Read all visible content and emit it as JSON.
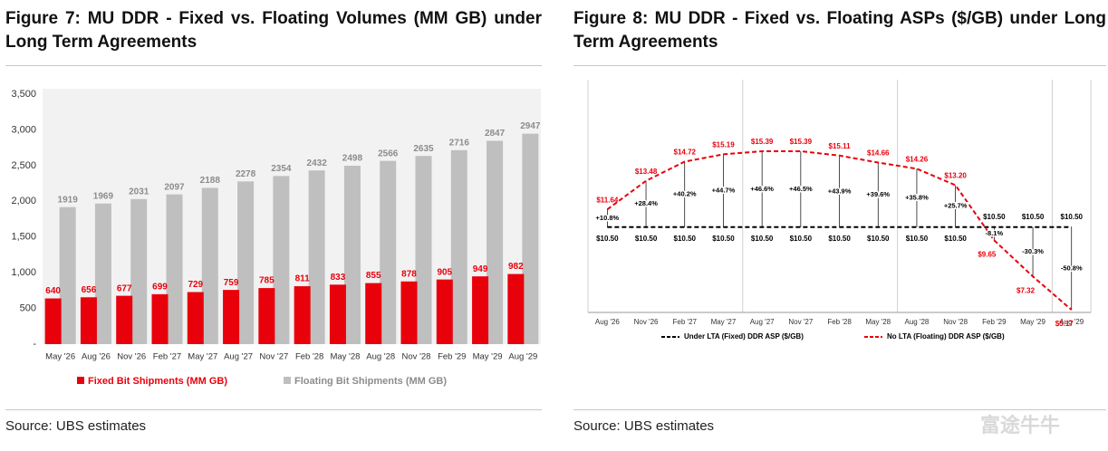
{
  "chart_data": [
    {
      "type": "bar",
      "title": "Figure 7: MU DDR - Fixed vs. Floating Volumes (MM GB) under Long Term Agreements",
      "categories": [
        "May '26",
        "Aug '26",
        "Nov '26",
        "Feb '27",
        "May '27",
        "Aug '27",
        "Nov '27",
        "Feb '28",
        "May '28",
        "Aug '28",
        "Nov '28",
        "Feb '29",
        "May '29",
        "Aug '29"
      ],
      "series": [
        {
          "name": "Fixed Bit Shipments (MM GB)",
          "color": "#e8000b",
          "values": [
            640,
            656,
            677,
            699,
            729,
            759,
            785,
            811,
            833,
            855,
            878,
            905,
            949,
            982
          ]
        },
        {
          "name": "Floating Bit Shipments (MM GB)",
          "color": "#bfbfbf",
          "values": [
            1919,
            1969,
            2031,
            2097,
            2188,
            2278,
            2354,
            2432,
            2498,
            2566,
            2635,
            2716,
            2847,
            2947
          ]
        }
      ],
      "ylim": [
        0,
        3500
      ],
      "yticks": [
        {
          "value": 0,
          "label": "-"
        },
        500,
        {
          "value": 1000,
          "label": "1,000"
        },
        {
          "value": 1500,
          "label": "1,500"
        },
        {
          "value": 2000,
          "label": "2,000"
        },
        {
          "value": 2500,
          "label": "2,500"
        },
        {
          "value": 3000,
          "label": "3,000"
        },
        {
          "value": 3500,
          "label": "3,500"
        }
      ],
      "legend": "bottom",
      "source": "Source: UBS estimates"
    },
    {
      "type": "line",
      "title": "Figure 8: MU DDR - Fixed vs. Floating ASPs ($/GB) under Long Term Agreements",
      "categories": [
        "Aug '26",
        "Nov '26",
        "Feb '27",
        "May '27",
        "Aug '27",
        "Nov '27",
        "Feb '28",
        "May '28",
        "Aug '28",
        "Nov '28",
        "Feb '29",
        "May '29",
        "Aug '29"
      ],
      "series": [
        {
          "name": "Under LTA (Fixed) DDR ASP ($/GB)",
          "color": "#000000",
          "line_style": "dashed",
          "values": [
            10.5,
            10.5,
            10.5,
            10.5,
            10.5,
            10.5,
            10.5,
            10.5,
            10.5,
            10.5,
            10.5,
            10.5,
            10.5
          ],
          "value_labels": [
            "$10.50",
            "$10.50",
            "$10.50",
            "$10.50",
            "$10.50",
            "$10.50",
            "$10.50",
            "$10.50",
            "$10.50",
            "$10.50",
            "$10.50",
            "$10.50",
            "$10.50"
          ]
        },
        {
          "name": "No LTA (Floating) DDR ASP ($/GB)",
          "color": "#e8000b",
          "line_style": "dashed",
          "values": [
            11.64,
            13.48,
            14.72,
            15.19,
            15.39,
            15.39,
            15.11,
            14.66,
            14.26,
            13.2,
            9.65,
            7.32,
            5.17
          ],
          "value_labels": [
            "$11.64",
            "$13.48",
            "$14.72",
            "$15.19",
            "$15.39",
            "$15.39",
            "$15.11",
            "$14.66",
            "$14.26",
            "$13.20",
            "$9.65",
            "$7.32",
            "$5.17"
          ]
        }
      ],
      "annotations": [
        "+10.8%",
        "+28.4%",
        "+40.2%",
        "+44.7%",
        "+46.6%",
        "+46.5%",
        "+43.9%",
        "+39.6%",
        "+35.8%",
        "+25.7%",
        "-8.1%",
        "-30.3%",
        "-50.8%"
      ],
      "ylim": [
        5,
        20
      ],
      "legend": "bottom",
      "source": "Source: UBS estimates"
    }
  ],
  "watermark": "富途牛牛"
}
